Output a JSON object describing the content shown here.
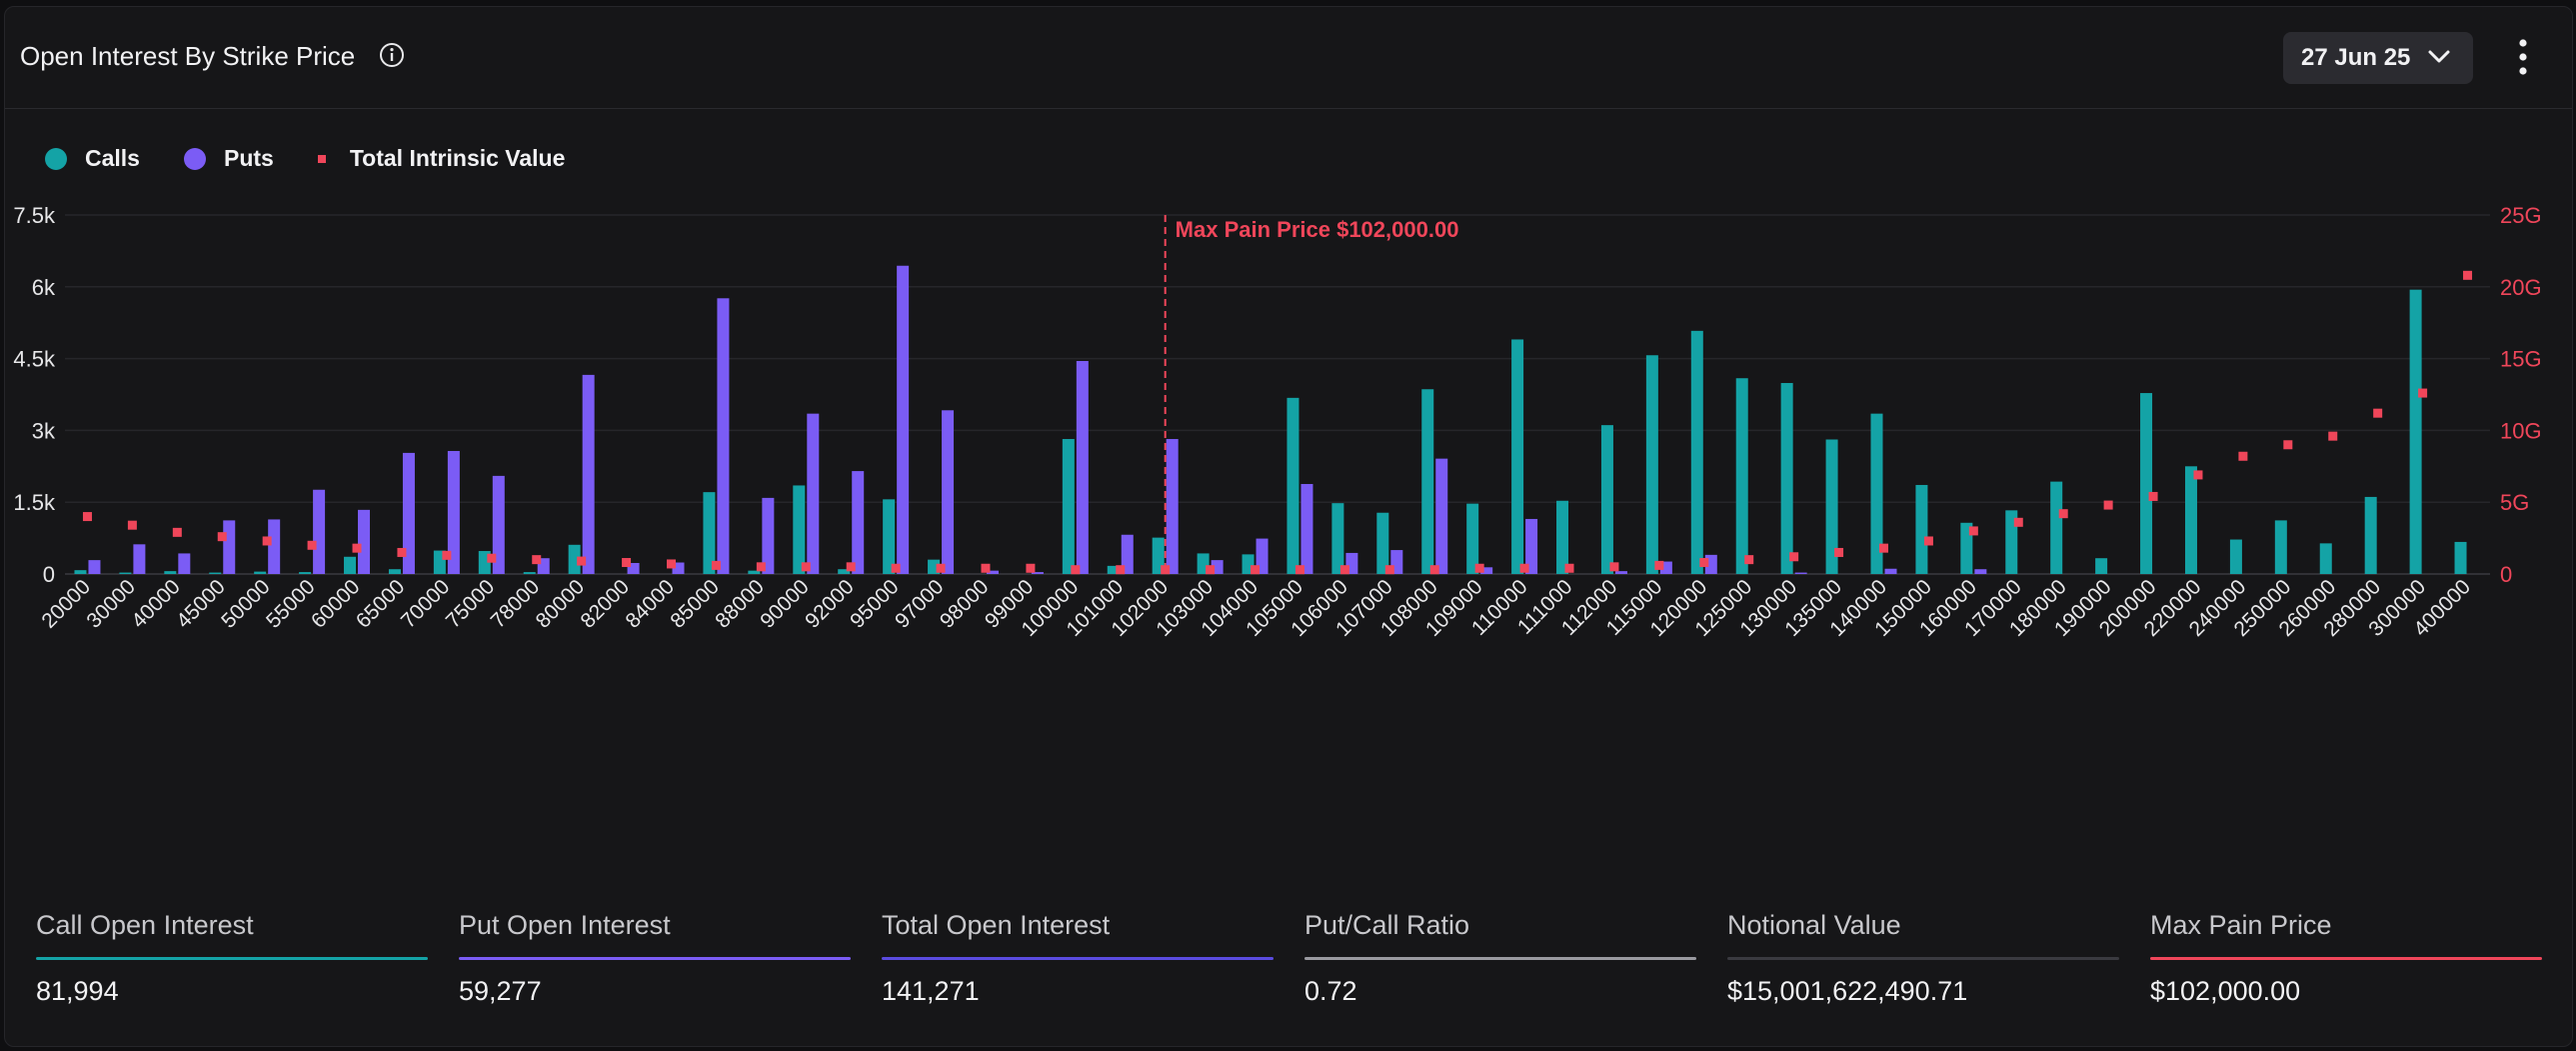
{
  "header": {
    "title": "Open Interest By Strike Price",
    "date_selected": "27 Jun 25"
  },
  "legend": [
    {
      "label": "Calls",
      "color": "#14a3a6"
    },
    {
      "label": "Puts",
      "color": "#7b5cf5"
    },
    {
      "label": "Total Intrinsic Value",
      "color": "#f0465a"
    }
  ],
  "chart_data": {
    "type": "bar",
    "categories": [
      "20000",
      "30000",
      "40000",
      "45000",
      "50000",
      "55000",
      "60000",
      "65000",
      "70000",
      "75000",
      "78000",
      "80000",
      "82000",
      "84000",
      "85000",
      "88000",
      "90000",
      "92000",
      "95000",
      "97000",
      "98000",
      "99000",
      "100000",
      "101000",
      "102000",
      "103000",
      "104000",
      "105000",
      "106000",
      "107000",
      "108000",
      "109000",
      "110000",
      "111000",
      "112000",
      "115000",
      "120000",
      "125000",
      "130000",
      "135000",
      "140000",
      "150000",
      "160000",
      "170000",
      "180000",
      "190000",
      "200000",
      "220000",
      "240000",
      "250000",
      "260000",
      "280000",
      "300000",
      "400000"
    ],
    "series": [
      {
        "name": "Calls",
        "axis": "left",
        "values": [
          80,
          30,
          60,
          30,
          50,
          40,
          360,
          100,
          490,
          480,
          40,
          610,
          0,
          0,
          1710,
          70,
          1850,
          100,
          1560,
          300,
          0,
          0,
          2820,
          170,
          760,
          430,
          410,
          3680,
          1480,
          1280,
          3860,
          1470,
          4900,
          1530,
          3110,
          4570,
          5080,
          4090,
          3990,
          2810,
          3350,
          1860,
          1070,
          1330,
          1930,
          330,
          3780,
          2250,
          720,
          1120,
          640,
          1610,
          5940,
          670
        ]
      },
      {
        "name": "Puts",
        "axis": "left",
        "values": [
          290,
          620,
          430,
          1120,
          1140,
          1760,
          1340,
          2530,
          2570,
          2050,
          330,
          4160,
          230,
          240,
          5760,
          1590,
          3350,
          2150,
          6440,
          3420,
          70,
          40,
          4450,
          820,
          2820,
          290,
          740,
          1880,
          440,
          500,
          2410,
          140,
          1150,
          0,
          60,
          260,
          400,
          0,
          30,
          0,
          110,
          0,
          100,
          0,
          0,
          0,
          0,
          0,
          0,
          0,
          0,
          0,
          0,
          0
        ]
      },
      {
        "name": "Total Intrinsic Value",
        "axis": "right",
        "type": "scatter",
        "values": [
          4.0,
          3.4,
          2.9,
          2.6,
          2.3,
          2.0,
          1.8,
          1.5,
          1.3,
          1.1,
          1.0,
          0.9,
          0.8,
          0.7,
          0.6,
          0.5,
          0.5,
          0.5,
          0.4,
          0.4,
          0.4,
          0.4,
          0.3,
          0.3,
          0.3,
          0.3,
          0.3,
          0.3,
          0.3,
          0.3,
          0.3,
          0.4,
          0.4,
          0.4,
          0.5,
          0.6,
          0.8,
          1.0,
          1.2,
          1.5,
          1.8,
          2.3,
          3.0,
          3.6,
          4.2,
          4.8,
          5.4,
          6.9,
          8.2,
          9.0,
          9.6,
          11.2,
          12.6,
          20.8
        ]
      }
    ],
    "y_left": {
      "min": 0,
      "max": 7500,
      "ticks": [
        0,
        1500,
        3000,
        4500,
        6000,
        7500
      ],
      "tick_labels": [
        "0",
        "1.5k",
        "3k",
        "4.5k",
        "6k",
        "7.5k"
      ]
    },
    "y_right": {
      "min": 0,
      "max": 25,
      "ticks": [
        0,
        5,
        10,
        15,
        20,
        25
      ],
      "tick_labels": [
        "0",
        "5G",
        "10G",
        "15G",
        "20G",
        "25G"
      ]
    },
    "marker": {
      "category": "102000",
      "label": "Max Pain Price $102,000.00",
      "color": "#f0465a"
    },
    "grid": true,
    "legend_position": "top-left"
  },
  "stats": [
    {
      "label": "Call Open Interest",
      "value": "81,994",
      "color": "#14a3a6"
    },
    {
      "label": "Put Open Interest",
      "value": "59,277",
      "color": "#7b5cf5"
    },
    {
      "label": "Total Open Interest",
      "value": "141,271",
      "color": "#5a4be0"
    },
    {
      "label": "Put/Call Ratio",
      "value": "0.72",
      "color": "#9a9aa0"
    },
    {
      "label": "Notional Value",
      "value": "$15,001,622,490.71",
      "color": "#3a3a40"
    },
    {
      "label": "Max Pain Price",
      "value": "$102,000.00",
      "color": "#f0465a"
    }
  ]
}
